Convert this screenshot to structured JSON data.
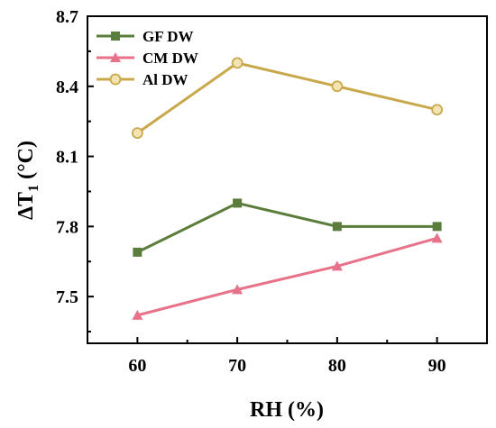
{
  "chart_data": {
    "type": "line",
    "xlabel": "RH (%)",
    "ylabel_main": "ΔT",
    "ylabel_sub": "1",
    "ylabel_unit": " (°C)",
    "x": [
      60,
      70,
      80,
      90
    ],
    "x_ticks": [
      "60",
      "70",
      "80",
      "90"
    ],
    "y_ticks": [
      "7.5",
      "7.8",
      "8.1",
      "8.4",
      "8.7"
    ],
    "y_tick_values": [
      7.5,
      7.8,
      8.1,
      8.4,
      8.7
    ],
    "xlim": [
      55,
      95
    ],
    "ylim": [
      7.3,
      8.7
    ],
    "grid": false,
    "legend_position": "top-left",
    "series": [
      {
        "name": "GF DW",
        "values": [
          7.69,
          7.9,
          7.8,
          7.8
        ],
        "color": "#5a7d3c",
        "marker": "square"
      },
      {
        "name": "CM DW",
        "values": [
          7.42,
          7.53,
          7.63,
          7.75
        ],
        "color": "#e8728a",
        "marker": "triangle"
      },
      {
        "name": "Al DW",
        "values": [
          8.2,
          8.5,
          8.4,
          8.3
        ],
        "color": "#c8a84b",
        "marker": "circle"
      }
    ]
  }
}
